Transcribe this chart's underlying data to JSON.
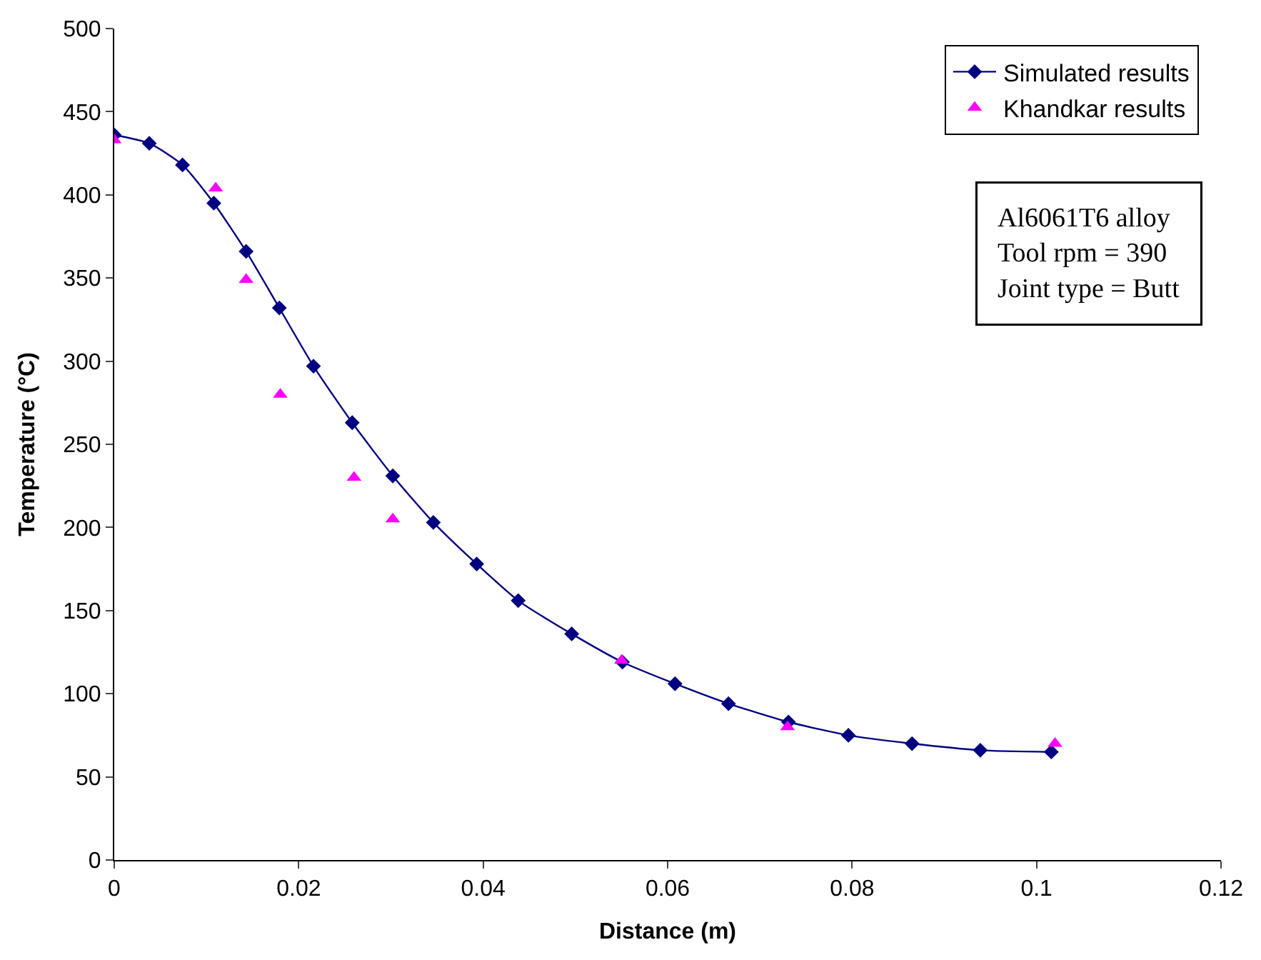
{
  "chart_data": {
    "type": "line",
    "xlabel": "Distance (m)",
    "ylabel": "Temperature (°C)",
    "xlim": [
      0,
      0.12
    ],
    "xticks": [
      0,
      0.02,
      0.04,
      0.06,
      0.08,
      0.1,
      0.12
    ],
    "ylim": [
      0,
      500
    ],
    "yticks": [
      0,
      50,
      100,
      150,
      200,
      250,
      300,
      350,
      400,
      450,
      500
    ],
    "legend": "top right",
    "annotations": [
      "Al6061T6 alloy\nTool rpm = 390\nJoint type = Butt"
    ],
    "series": [
      {
        "name": "Simulated results",
        "marker": "diamond",
        "line_style": "solid",
        "color": "#000080",
        "x": [
          0,
          0.0038,
          0.0074,
          0.0108,
          0.0143,
          0.0179,
          0.0216,
          0.0258,
          0.0302,
          0.0346,
          0.0393,
          0.0438,
          0.0496,
          0.0551,
          0.0608,
          0.0666,
          0.0731,
          0.0796,
          0.0865,
          0.0939,
          0.1016
        ],
        "values": [
          436,
          431,
          418,
          395,
          366,
          332,
          297,
          263,
          231,
          203,
          178,
          156,
          136,
          119,
          106,
          94,
          83,
          75,
          70,
          66,
          65
        ]
      },
      {
        "name": "Khandkar results",
        "type": "scatter",
        "marker": "triangle",
        "color": "#ff00ff",
        "x": [
          0,
          0.011,
          0.0143,
          0.018,
          0.026,
          0.0302,
          0.055,
          0.073,
          0.102
        ],
        "values": [
          433,
          404,
          349,
          280,
          230,
          205,
          120,
          80,
          70
        ]
      }
    ]
  }
}
